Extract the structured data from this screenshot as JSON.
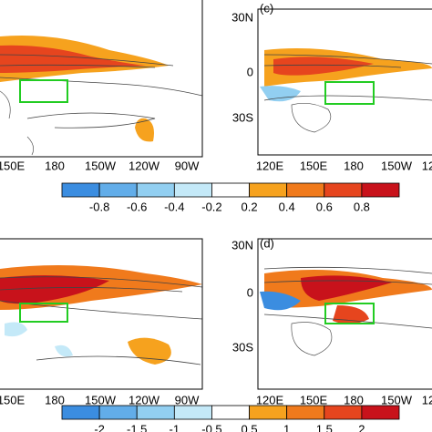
{
  "top_left": {
    "lon_labels": [
      "150E",
      "180",
      "150W",
      "120W",
      "90W"
    ]
  },
  "top_right": {
    "label": "(c)",
    "lat_labels": [
      "30N",
      "0",
      "30S"
    ],
    "lon_labels": [
      "120E",
      "150E",
      "180",
      "150W",
      "12"
    ]
  },
  "colorbar_top": {
    "ticks": [
      -0.8,
      -0.6,
      -0.4,
      -0.2,
      0.2,
      0.4,
      0.6,
      0.8
    ],
    "colors": [
      "#3b8de0",
      "#62ade9",
      "#92cff1",
      "#c4e9f8",
      "#ffffff",
      "#f6a21e",
      "#f07a1c",
      "#e6451e",
      "#c8121b"
    ]
  },
  "bottom_left": {
    "lon_labels": [
      "150E",
      "180",
      "150W",
      "120W",
      "90W"
    ]
  },
  "bottom_right": {
    "label": "(d)",
    "lat_labels": [
      "30N",
      "0",
      "30S"
    ],
    "lon_labels": [
      "120E",
      "150E",
      "180",
      "150W",
      "12"
    ]
  },
  "colorbar_bottom": {
    "ticks": [
      -2,
      -1.5,
      -1,
      -0.5,
      0.5,
      1,
      1.5,
      2
    ],
    "colors": [
      "#3b8de0",
      "#62ade9",
      "#92cff1",
      "#c4e9f8",
      "#ffffff",
      "#f6a21e",
      "#f07a1c",
      "#e6451e",
      "#c8121b"
    ]
  }
}
